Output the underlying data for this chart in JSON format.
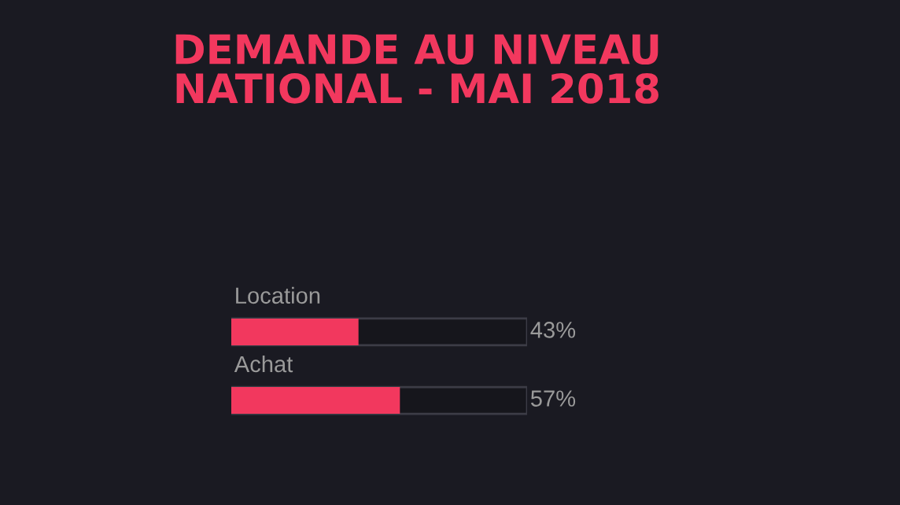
{
  "chart_data": {
    "type": "bar",
    "orientation": "horizontal",
    "title": "DEMANDE AU NIVEAU\nNATIONAL - MAI 2018",
    "categories": [
      "Location",
      "Achat"
    ],
    "values": [
      43,
      57
    ],
    "value_labels": [
      "43%",
      "57%"
    ],
    "color": "#f2385e",
    "xlim": [
      0,
      100
    ]
  }
}
